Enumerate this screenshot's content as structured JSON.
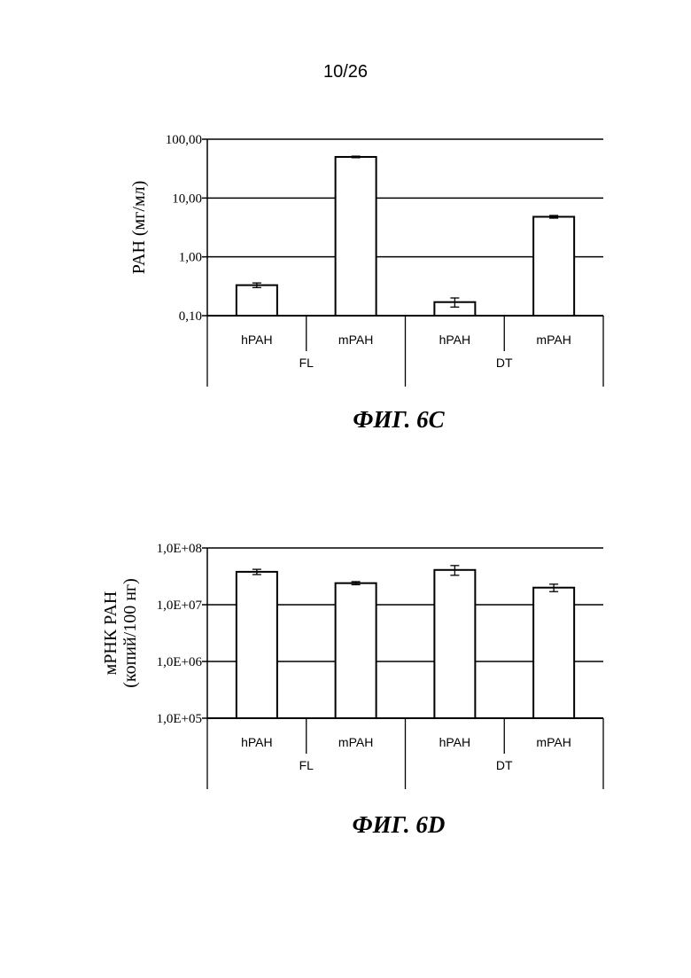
{
  "page": {
    "number": "10/26"
  },
  "chart_data": [
    {
      "type": "bar",
      "caption": "ФИГ. 6C",
      "ylabel": "PAH (мг/мл)",
      "ylabel_lines": [
        "PAH (мг/мл)"
      ],
      "yscale": "log",
      "ylim": [
        0.1,
        100
      ],
      "yticks": [
        0.1,
        1,
        10,
        100
      ],
      "ytick_labels": [
        "0,10",
        "1,00",
        "10,00",
        "100,00"
      ],
      "categories": [
        "hPAH",
        "mPAH",
        "hPAH",
        "mPAH"
      ],
      "groups": [
        "FL",
        "DT"
      ],
      "values": [
        0.33,
        50,
        0.17,
        4.8
      ],
      "errors": [
        0.03,
        1.5,
        0.03,
        0.25
      ],
      "grid": true,
      "colors": {
        "bar_fill": "#ffffff",
        "bar_stroke": "#000000"
      }
    },
    {
      "type": "bar",
      "caption": "ФИГ. 6D",
      "ylabel": "мРНК PAH (копий/100 нг)",
      "ylabel_lines": [
        "мРНК PAH",
        "(копий/100 нг)"
      ],
      "yscale": "log",
      "ylim": [
        100000,
        100000000
      ],
      "yticks": [
        100000,
        1000000,
        10000000,
        100000000
      ],
      "ytick_labels": [
        "1,0E+05",
        "1,0E+06",
        "1,0E+07",
        "1,0E+08"
      ],
      "categories": [
        "hPAH",
        "mPAH",
        "hPAH",
        "mPAH"
      ],
      "groups": [
        "FL",
        "DT"
      ],
      "values": [
        38000000,
        24000000,
        41000000,
        20000000
      ],
      "errors": [
        4000000,
        1500000,
        8000000,
        3000000
      ],
      "grid": true,
      "colors": {
        "bar_fill": "#ffffff",
        "bar_stroke": "#000000"
      }
    }
  ]
}
